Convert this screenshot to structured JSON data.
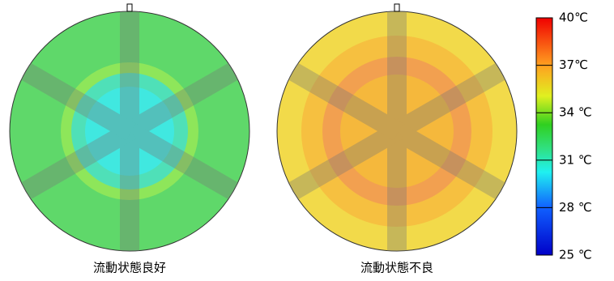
{
  "chart_data": {
    "type": "heatmap",
    "panels": [
      {
        "title": "流動状態良好"
      },
      {
        "title": "流動状態不良"
      }
    ],
    "clim": [
      25,
      40
    ],
    "cticks": [
      {
        "value": 25,
        "label": "25 ℃"
      },
      {
        "value": 28,
        "label": "28 ℃"
      },
      {
        "value": 31,
        "label": "31 ℃"
      },
      {
        "value": 34,
        "label": "34 ℃"
      },
      {
        "value": 37,
        "label": "37℃"
      },
      {
        "value": 40,
        "label": "40℃"
      }
    ]
  }
}
